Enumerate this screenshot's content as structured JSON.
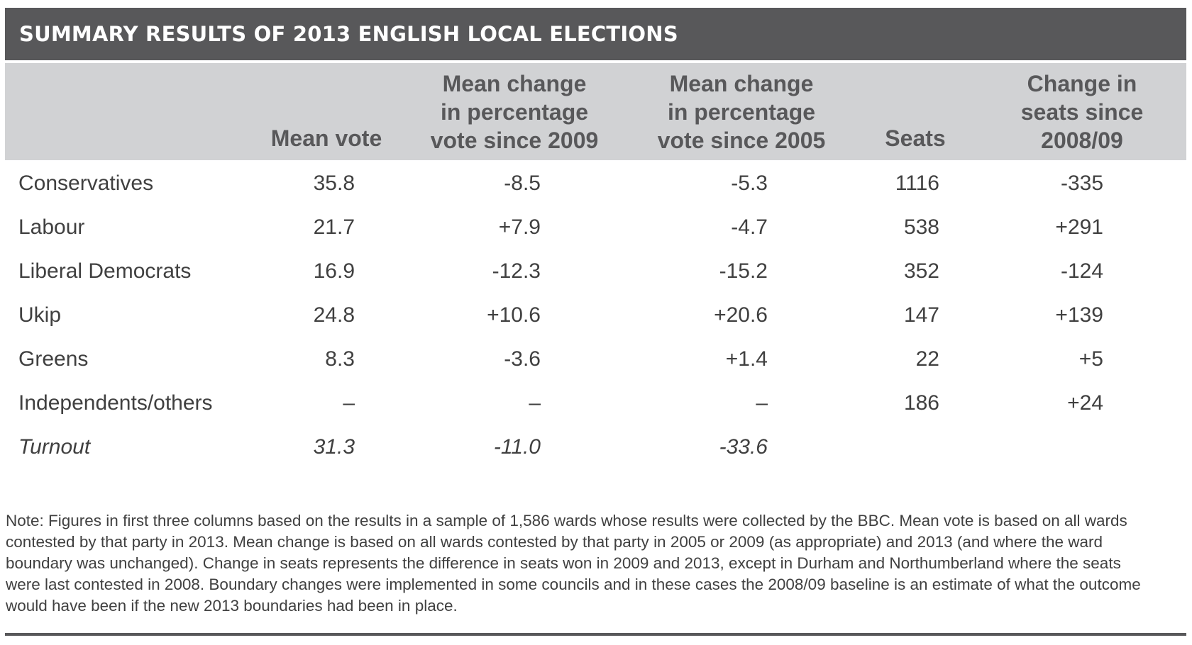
{
  "title": "SUMMARY RESULTS OF 2013 ENGLISH LOCAL ELECTIONS",
  "columns": [
    {
      "lines": [
        "Mean vote"
      ]
    },
    {
      "lines": [
        "Mean change",
        "in percentage",
        "vote since 2009"
      ]
    },
    {
      "lines": [
        "Mean change",
        "in percentage",
        "vote since 2005"
      ]
    },
    {
      "lines": [
        "Seats"
      ]
    },
    {
      "lines": [
        "Change in",
        "seats since",
        "2008/09"
      ]
    }
  ],
  "rows": [
    {
      "party": "Conservatives",
      "mean_vote": "35.8",
      "change_2009": "-8.5",
      "change_2005": "-5.3",
      "seats": "1116",
      "seat_change": "-335"
    },
    {
      "party": "Labour",
      "mean_vote": "21.7",
      "change_2009": "+7.9",
      "change_2005": "-4.7",
      "seats": "538",
      "seat_change": "+291"
    },
    {
      "party": "Liberal Democrats",
      "mean_vote": "16.9",
      "change_2009": "-12.3",
      "change_2005": "-15.2",
      "seats": "352",
      "seat_change": "-124"
    },
    {
      "party": "Ukip",
      "mean_vote": "24.8",
      "change_2009": "+10.6",
      "change_2005": "+20.6",
      "seats": "147",
      "seat_change": "+139"
    },
    {
      "party": "Greens",
      "mean_vote": "8.3",
      "change_2009": "-3.6",
      "change_2005": "+1.4",
      "seats": "22",
      "seat_change": "+5"
    },
    {
      "party": "Independents/others",
      "mean_vote": "–",
      "change_2009": "–",
      "change_2005": "–",
      "seats": "186",
      "seat_change": "+24"
    }
  ],
  "turnout": {
    "label": "Turnout",
    "mean_vote": "31.3",
    "change_2009": "-11.0",
    "change_2005": "-33.6"
  },
  "note": "Note: Figures in first three columns based on the results in a sample of 1,586 wards whose results were collected by the BBC. Mean vote is based on all wards contested by that party in 2013. Mean change is based on all wards contested by that party in 2005 or 2009 (as appropriate) and 2013 (and where the ward boundary was unchanged). Change in seats represents the difference in seats won in 2009 and 2013, except in Durham and Northumberland where the seats were last contested in 2008. Boundary changes were implemented in some councils and in these cases the 2008/09 baseline is an estimate of what the outcome would have been if the new 2013 boundaries had been in place."
}
